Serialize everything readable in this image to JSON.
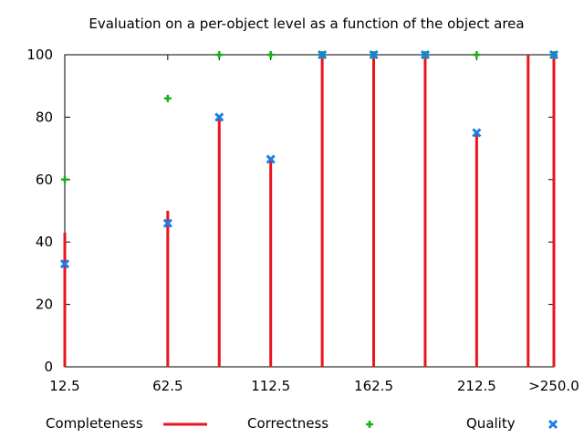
{
  "chart_data": {
    "type": "bar",
    "title": "Evaluation on a per-object level as a function of the object area",
    "xlabel": "",
    "ylabel": "",
    "ylim": [
      0,
      100
    ],
    "yticks": [
      0,
      20,
      40,
      60,
      80,
      100
    ],
    "xtick_labels": [
      "12.5",
      "62.5",
      "112.5",
      "162.5",
      "212.5",
      ">250.0"
    ],
    "x": [
      12.5,
      62.5,
      87.5,
      112.5,
      137.5,
      162.5,
      187.5,
      212.5,
      237.5,
      250.0
    ],
    "grid": false,
    "legend_position": "bottom",
    "series": [
      {
        "name": "Completeness",
        "style": "impulses",
        "color": "#e8141e",
        "values": [
          43,
          50,
          80,
          67,
          100,
          100,
          100,
          75,
          100,
          100
        ]
      },
      {
        "name": "Correctness",
        "style": "points-plus",
        "color": "#1aaf1a",
        "values": [
          60,
          86,
          100,
          100,
          100,
          100,
          100,
          100,
          null,
          100
        ]
      },
      {
        "name": "Quality",
        "style": "points-x",
        "color": "#1a7ee8",
        "values": [
          33,
          46,
          80,
          66.5,
          100,
          100,
          100,
          75,
          null,
          100
        ]
      }
    ]
  }
}
